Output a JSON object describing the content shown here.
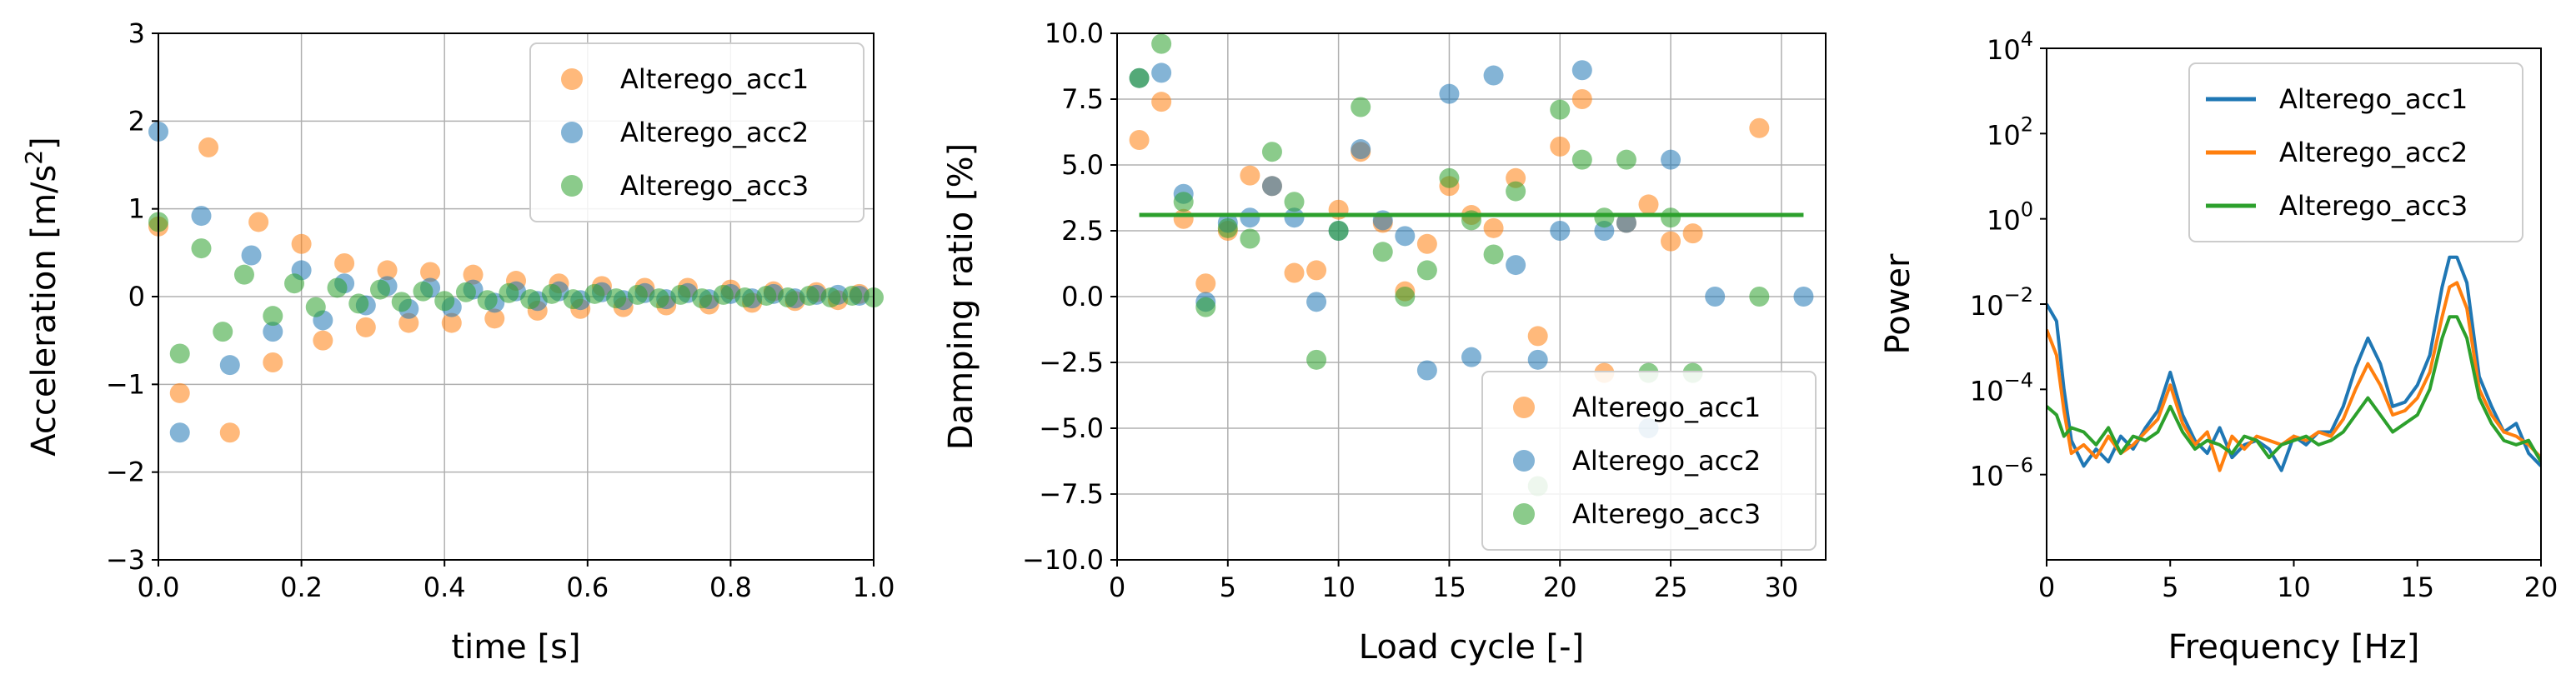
{
  "chart_data": [
    {
      "type": "scatter",
      "xlabel": "time [s]",
      "ylabel": "Acceleration [m/s²]",
      "ylabel_main": "Acceleration [m/s",
      "ylabel_sup": "2",
      "ylabel_end": "]",
      "xlim": [
        0,
        1
      ],
      "ylim": [
        -3,
        3
      ],
      "xticks": [
        0,
        0.2,
        0.4,
        0.6,
        0.8,
        1.0
      ],
      "xtick_labels": [
        "0.0",
        "0.2",
        "0.4",
        "0.6",
        "0.8",
        "1.0"
      ],
      "yticks": [
        -3,
        -2,
        -1,
        0,
        1,
        2,
        3
      ],
      "ytick_labels": [
        "−3",
        "−2",
        "−1",
        "0",
        "1",
        "2",
        "3"
      ],
      "grid": true,
      "legend_position": "upper right",
      "series": [
        {
          "name": "Alterego_acc1",
          "color": "#ff7f0e",
          "x": [
            0.0,
            0.03,
            0.07,
            0.1,
            0.14,
            0.16,
            0.2,
            0.23,
            0.26,
            0.29,
            0.32,
            0.35,
            0.38,
            0.41,
            0.44,
            0.47,
            0.5,
            0.53,
            0.56,
            0.59,
            0.62,
            0.65,
            0.68,
            0.71,
            0.74,
            0.77,
            0.8,
            0.83,
            0.86,
            0.89,
            0.92,
            0.95,
            0.98
          ],
          "y": [
            0.8,
            -1.1,
            1.7,
            -1.55,
            0.85,
            -0.75,
            0.6,
            -0.5,
            0.38,
            -0.35,
            0.3,
            -0.3,
            0.28,
            -0.3,
            0.25,
            -0.25,
            0.18,
            -0.16,
            0.15,
            -0.14,
            0.12,
            -0.12,
            0.1,
            -0.1,
            0.1,
            -0.09,
            0.08,
            -0.07,
            0.06,
            -0.05,
            0.05,
            -0.04,
            0.03
          ]
        },
        {
          "name": "Alterego_acc2",
          "color": "#1f77b4",
          "x": [
            0.0,
            0.03,
            0.06,
            0.1,
            0.13,
            0.16,
            0.2,
            0.23,
            0.26,
            0.29,
            0.32,
            0.35,
            0.38,
            0.41,
            0.44,
            0.47,
            0.5,
            0.53,
            0.56,
            0.59,
            0.62,
            0.65,
            0.68,
            0.71,
            0.74,
            0.77,
            0.8,
            0.83,
            0.86,
            0.89,
            0.92,
            0.95,
            0.98
          ],
          "y": [
            1.88,
            -1.55,
            0.92,
            -0.78,
            0.47,
            -0.4,
            0.3,
            -0.27,
            0.15,
            -0.1,
            0.12,
            -0.14,
            0.1,
            -0.12,
            0.08,
            -0.07,
            0.06,
            -0.05,
            0.06,
            -0.04,
            0.05,
            -0.04,
            0.04,
            -0.03,
            0.04,
            -0.03,
            0.03,
            -0.02,
            0.03,
            -0.02,
            0.02,
            0.02,
            0.01
          ]
        },
        {
          "name": "Alterego_acc3",
          "color": "#2ca02c",
          "x": [
            0.0,
            0.03,
            0.06,
            0.09,
            0.12,
            0.16,
            0.19,
            0.22,
            0.25,
            0.28,
            0.31,
            0.34,
            0.37,
            0.4,
            0.43,
            0.46,
            0.49,
            0.52,
            0.55,
            0.58,
            0.61,
            0.64,
            0.67,
            0.7,
            0.73,
            0.76,
            0.79,
            0.82,
            0.85,
            0.88,
            0.91,
            0.94,
            0.97,
            1.0
          ],
          "y": [
            0.85,
            -0.65,
            0.55,
            -0.4,
            0.25,
            -0.22,
            0.15,
            -0.12,
            0.1,
            -0.08,
            0.08,
            -0.06,
            0.06,
            -0.05,
            0.05,
            -0.04,
            0.04,
            -0.03,
            0.03,
            -0.03,
            0.03,
            -0.02,
            0.02,
            -0.02,
            0.02,
            -0.02,
            0.02,
            -0.01,
            0.01,
            -0.01,
            0.01,
            -0.01,
            0.01,
            -0.01
          ]
        }
      ]
    },
    {
      "type": "scatter",
      "xlabel": "Load cycle [-]",
      "ylabel": "Damping ratio [%]",
      "xlim": [
        0,
        32
      ],
      "ylim": [
        -10,
        10
      ],
      "xticks": [
        0,
        5,
        10,
        15,
        20,
        25,
        30
      ],
      "xtick_labels": [
        "0",
        "5",
        "10",
        "15",
        "20",
        "25",
        "30"
      ],
      "yticks": [
        -10,
        -7.5,
        -5,
        -2.5,
        0,
        2.5,
        5,
        7.5,
        10
      ],
      "ytick_labels": [
        "−10.0",
        "−7.5",
        "−5.0",
        "−2.5",
        "0.0",
        "2.5",
        "5.0",
        "7.5",
        "10.0"
      ],
      "grid": true,
      "legend_position": "lower right",
      "hline": {
        "y": 3.1,
        "color": "#2ca02c"
      },
      "series": [
        {
          "name": "Alterego_acc1",
          "color": "#ff7f0e",
          "x": [
            1,
            2,
            3,
            4,
            5,
            6,
            7,
            8,
            9,
            10,
            11,
            12,
            13,
            14,
            15,
            16,
            17,
            18,
            19,
            20,
            21,
            22,
            23,
            24,
            25,
            26,
            29
          ],
          "y": [
            5.95,
            7.4,
            2.95,
            0.5,
            2.5,
            4.6,
            4.2,
            0.9,
            1.0,
            3.3,
            5.5,
            2.8,
            0.2,
            2.0,
            4.2,
            3.1,
            2.6,
            4.5,
            -1.5,
            5.7,
            7.5,
            -2.9,
            2.8,
            3.5,
            2.1,
            2.4,
            6.4
          ]
        },
        {
          "name": "Alterego_acc2",
          "color": "#1f77b4",
          "x": [
            1,
            2,
            3,
            4,
            5,
            6,
            7,
            8,
            9,
            10,
            11,
            12,
            13,
            14,
            15,
            16,
            17,
            18,
            19,
            20,
            21,
            22,
            23,
            24,
            25,
            27,
            31
          ],
          "y": [
            8.3,
            8.5,
            3.9,
            -0.2,
            2.8,
            3.0,
            4.2,
            3.0,
            -0.2,
            2.5,
            5.6,
            2.9,
            2.3,
            -2.8,
            7.7,
            -2.3,
            8.4,
            1.2,
            -2.4,
            2.5,
            8.6,
            2.5,
            2.8,
            -5.0,
            5.2,
            0.0,
            0.0
          ]
        },
        {
          "name": "Alterego_acc3",
          "color": "#2ca02c",
          "x": [
            1,
            2,
            3,
            4,
            5,
            6,
            7,
            8,
            9,
            10,
            11,
            12,
            13,
            14,
            15,
            16,
            17,
            18,
            19,
            20,
            21,
            22,
            23,
            24,
            25,
            26,
            29
          ],
          "y": [
            8.3,
            9.6,
            3.6,
            -0.4,
            2.6,
            2.2,
            5.5,
            3.6,
            -2.4,
            2.5,
            7.2,
            1.7,
            0.0,
            1.0,
            4.5,
            2.9,
            1.6,
            4.0,
            -7.2,
            7.1,
            5.2,
            3.0,
            5.2,
            -2.9,
            3.0,
            -2.9,
            0.0
          ]
        }
      ]
    },
    {
      "type": "line",
      "xlabel": "Frequency [Hz]",
      "ylabel": "Power",
      "yscale": "log",
      "xlim": [
        0,
        20
      ],
      "ylim_exp": [
        -8,
        4
      ],
      "xticks": [
        0,
        5,
        10,
        15,
        20
      ],
      "xtick_labels": [
        "0",
        "5",
        "10",
        "15",
        "20"
      ],
      "ytick_exps": [
        -6,
        -4,
        -2,
        0,
        2,
        4
      ],
      "ytick_base": "10",
      "ytick_exp_labels": [
        "−6",
        "−4",
        "−2",
        "0",
        "2",
        "4"
      ],
      "grid": false,
      "legend_position": "upper right",
      "series": [
        {
          "name": "Alterego_acc1",
          "color": "#1f77b4",
          "x": [
            0,
            0.4,
            0.7,
            1,
            1.5,
            2,
            2.5,
            3,
            3.5,
            4,
            4.5,
            5,
            5.5,
            6,
            6.5,
            7,
            7.5,
            8,
            8.5,
            9,
            9.5,
            10,
            10.5,
            11,
            11.5,
            12,
            12.5,
            13,
            13.5,
            14,
            14.5,
            15,
            15.5,
            16,
            16.3,
            16.6,
            17,
            17.5,
            18,
            18.5,
            19,
            19.5,
            20
          ],
          "y_exp": [
            -2.0,
            -2.4,
            -4.0,
            -5.2,
            -5.8,
            -5.4,
            -5.7,
            -5.1,
            -5.4,
            -4.9,
            -4.5,
            -3.6,
            -4.6,
            -5.2,
            -5.5,
            -4.9,
            -5.6,
            -5.3,
            -5.2,
            -5.4,
            -5.9,
            -5.1,
            -5.3,
            -5.0,
            -5.0,
            -4.4,
            -3.5,
            -2.8,
            -3.4,
            -4.4,
            -4.3,
            -3.9,
            -3.2,
            -1.6,
            -0.9,
            -0.9,
            -1.5,
            -3.7,
            -4.4,
            -5.0,
            -4.8,
            -5.5,
            -5.8
          ]
        },
        {
          "name": "Alterego_acc2",
          "color": "#ff7f0e",
          "x": [
            0,
            0.4,
            0.7,
            1,
            1.5,
            2,
            2.5,
            3,
            3.5,
            4,
            4.5,
            5,
            5.5,
            6,
            6.5,
            7,
            7.5,
            8,
            8.5,
            9,
            9.5,
            10,
            10.5,
            11,
            11.5,
            12,
            12.5,
            13,
            13.5,
            14,
            14.5,
            15,
            15.5,
            16,
            16.3,
            16.6,
            17,
            17.5,
            18,
            18.5,
            19,
            19.5,
            20
          ],
          "y_exp": [
            -2.6,
            -3.2,
            -4.5,
            -5.5,
            -5.3,
            -5.6,
            -5.1,
            -5.5,
            -5.3,
            -5.0,
            -4.7,
            -3.9,
            -4.8,
            -5.3,
            -5.0,
            -5.9,
            -5.1,
            -5.4,
            -5.1,
            -5.2,
            -5.3,
            -5.1,
            -5.2,
            -5.0,
            -5.1,
            -4.7,
            -4.0,
            -3.4,
            -3.9,
            -4.6,
            -4.5,
            -4.2,
            -3.6,
            -2.3,
            -1.6,
            -1.5,
            -2.1,
            -4.0,
            -4.6,
            -5.0,
            -5.1,
            -5.3,
            -5.6
          ]
        },
        {
          "name": "Alterego_acc3",
          "color": "#2ca02c",
          "x": [
            0,
            0.4,
            0.7,
            1,
            1.5,
            2,
            2.5,
            3,
            3.5,
            4,
            4.5,
            5,
            5.5,
            6,
            6.5,
            7,
            7.5,
            8,
            8.5,
            9,
            9.5,
            10,
            10.5,
            11,
            11.5,
            12,
            12.5,
            13,
            13.5,
            14,
            14.5,
            15,
            15.5,
            16,
            16.3,
            16.6,
            17,
            17.5,
            18,
            18.5,
            19,
            19.5,
            20
          ],
          "y_exp": [
            -4.4,
            -4.6,
            -5.1,
            -4.9,
            -5.0,
            -5.3,
            -4.9,
            -5.5,
            -5.1,
            -5.2,
            -5.0,
            -4.4,
            -5.0,
            -5.4,
            -5.2,
            -5.3,
            -5.5,
            -5.1,
            -5.2,
            -5.6,
            -5.3,
            -5.2,
            -5.1,
            -5.3,
            -5.2,
            -5.0,
            -4.6,
            -4.2,
            -4.6,
            -5.0,
            -4.8,
            -4.6,
            -4.0,
            -2.8,
            -2.3,
            -2.3,
            -2.8,
            -4.2,
            -4.8,
            -5.2,
            -5.3,
            -5.2,
            -5.7
          ]
        }
      ]
    }
  ]
}
